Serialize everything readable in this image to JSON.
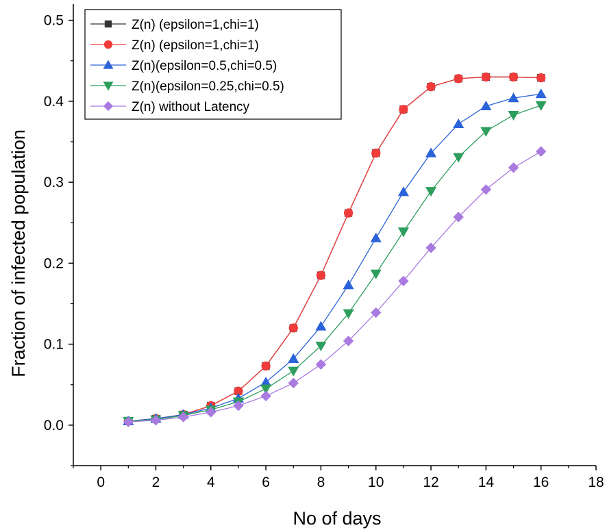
{
  "chart_data": {
    "type": "line",
    "xlabel": "No of days",
    "ylabel": "Fraction of infected population",
    "xlim": [
      -1,
      18
    ],
    "ylim": [
      -0.05,
      0.52
    ],
    "xticks": [
      0,
      2,
      4,
      6,
      8,
      10,
      12,
      14,
      16,
      18
    ],
    "yticks": [
      0.0,
      0.1,
      0.2,
      0.3,
      0.4,
      0.5
    ],
    "xtick_labels": [
      "0",
      "2",
      "4",
      "6",
      "8",
      "10",
      "12",
      "14",
      "16",
      "18"
    ],
    "ytick_labels": [
      "0.0",
      "0.1",
      "0.2",
      "0.3",
      "0.4",
      "0.5"
    ],
    "grid": false,
    "legend_position": "top-left",
    "x": [
      1,
      2,
      3,
      4,
      5,
      6,
      7,
      8,
      9,
      10,
      11,
      12,
      13,
      14,
      15,
      16
    ],
    "series": [
      {
        "name": "Z(n) (epsilon=1,chi=1)",
        "color": "#333333",
        "marker": "square",
        "values": [
          0.005,
          0.008,
          0.013,
          0.024,
          0.042,
          0.073,
          0.12,
          0.185,
          0.262,
          0.336,
          0.39,
          0.418,
          0.428,
          0.43,
          0.43,
          0.429
        ]
      },
      {
        "name": "Z(n) (epsilon=1,chi=1)",
        "color": "#f03b3b",
        "marker": "circle",
        "values": [
          0.005,
          0.008,
          0.013,
          0.024,
          0.042,
          0.073,
          0.12,
          0.185,
          0.262,
          0.336,
          0.39,
          0.418,
          0.428,
          0.43,
          0.43,
          0.429
        ]
      },
      {
        "name": "Z(n)(epsilon=0.5,chi=0.5)",
        "color": "#2b63d9",
        "marker": "triangle-up",
        "values": [
          0.005,
          0.008,
          0.013,
          0.021,
          0.033,
          0.053,
          0.082,
          0.122,
          0.173,
          0.231,
          0.288,
          0.336,
          0.372,
          0.394,
          0.404,
          0.409
        ]
      },
      {
        "name": "Z(n)(epsilon=0.25,chi=0.5)",
        "color": "#2e9e5e",
        "marker": "triangle-down",
        "values": [
          0.005,
          0.007,
          0.012,
          0.019,
          0.029,
          0.045,
          0.067,
          0.098,
          0.138,
          0.187,
          0.239,
          0.289,
          0.331,
          0.363,
          0.383,
          0.395
        ]
      },
      {
        "name": "Z(n) without Latency",
        "color": "#a97ae0",
        "marker": "diamond",
        "values": [
          0.004,
          0.006,
          0.01,
          0.016,
          0.024,
          0.036,
          0.052,
          0.075,
          0.104,
          0.139,
          0.178,
          0.219,
          0.257,
          0.291,
          0.318,
          0.338
        ]
      }
    ]
  }
}
